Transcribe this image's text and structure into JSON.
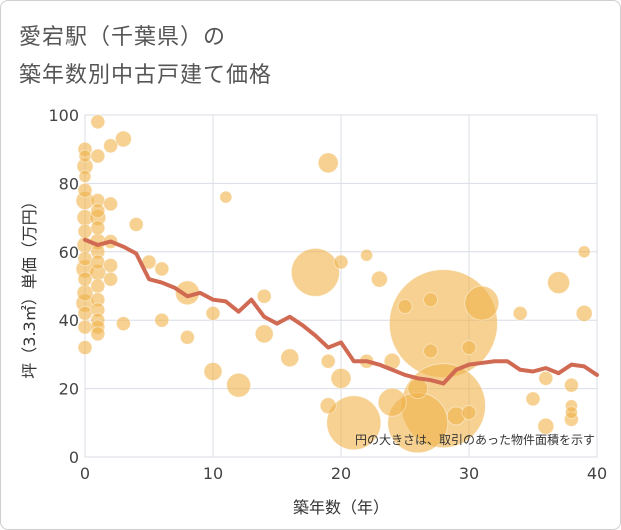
{
  "title_line1": "愛宕駅（千葉県）の",
  "title_line2": "築年数別中古戸建て価格",
  "chart_data": {
    "type": "scatter",
    "title": "愛宕駅（千葉県）の築年数別中古戸建て価格",
    "xlabel": "築年数（年）",
    "ylabel": "坪（3.3㎡）単価（万円）",
    "xlim": [
      0,
      40
    ],
    "ylim": [
      0,
      100
    ],
    "xticks": [
      0,
      10,
      20,
      30,
      40
    ],
    "yticks": [
      0,
      20,
      40,
      60,
      80,
      100
    ],
    "grid": true,
    "note": "円の大きさは、取引のあった物件面積を示す",
    "colors": {
      "bubble": "#f0b24a",
      "line": "#d06a52",
      "grid": "#d9dde6"
    },
    "bubbles": [
      {
        "x": 0,
        "y": 90,
        "r": 7
      },
      {
        "x": 0,
        "y": 88,
        "r": 6
      },
      {
        "x": 0,
        "y": 85,
        "r": 8
      },
      {
        "x": 0,
        "y": 82,
        "r": 6
      },
      {
        "x": 0,
        "y": 78,
        "r": 7
      },
      {
        "x": 0,
        "y": 75,
        "r": 9
      },
      {
        "x": 0,
        "y": 70,
        "r": 8
      },
      {
        "x": 0,
        "y": 66,
        "r": 7
      },
      {
        "x": 0,
        "y": 62,
        "r": 8
      },
      {
        "x": 0,
        "y": 58,
        "r": 7
      },
      {
        "x": 0,
        "y": 55,
        "r": 9
      },
      {
        "x": 0,
        "y": 52,
        "r": 7
      },
      {
        "x": 0,
        "y": 48,
        "r": 8
      },
      {
        "x": 0,
        "y": 45,
        "r": 9
      },
      {
        "x": 0,
        "y": 42,
        "r": 7
      },
      {
        "x": 0,
        "y": 38,
        "r": 7
      },
      {
        "x": 0,
        "y": 32,
        "r": 7
      },
      {
        "x": 1,
        "y": 98,
        "r": 7
      },
      {
        "x": 1,
        "y": 88,
        "r": 7
      },
      {
        "x": 1,
        "y": 75,
        "r": 7
      },
      {
        "x": 1,
        "y": 72,
        "r": 7
      },
      {
        "x": 1,
        "y": 70,
        "r": 8
      },
      {
        "x": 1,
        "y": 67,
        "r": 7
      },
      {
        "x": 1,
        "y": 63,
        "r": 8
      },
      {
        "x": 1,
        "y": 60,
        "r": 7
      },
      {
        "x": 1,
        "y": 57,
        "r": 7
      },
      {
        "x": 1,
        "y": 54,
        "r": 8
      },
      {
        "x": 1,
        "y": 50,
        "r": 7
      },
      {
        "x": 1,
        "y": 46,
        "r": 7
      },
      {
        "x": 1,
        "y": 43,
        "r": 7
      },
      {
        "x": 1,
        "y": 40,
        "r": 7
      },
      {
        "x": 1,
        "y": 38,
        "r": 7
      },
      {
        "x": 1,
        "y": 36,
        "r": 7
      },
      {
        "x": 2,
        "y": 91,
        "r": 7
      },
      {
        "x": 2,
        "y": 74,
        "r": 7
      },
      {
        "x": 2,
        "y": 63,
        "r": 7
      },
      {
        "x": 2,
        "y": 56,
        "r": 7
      },
      {
        "x": 2,
        "y": 52,
        "r": 7
      },
      {
        "x": 3,
        "y": 93,
        "r": 8
      },
      {
        "x": 3,
        "y": 39,
        "r": 7
      },
      {
        "x": 4,
        "y": 68,
        "r": 7
      },
      {
        "x": 5,
        "y": 57,
        "r": 7
      },
      {
        "x": 6,
        "y": 55,
        "r": 7
      },
      {
        "x": 6,
        "y": 40,
        "r": 7
      },
      {
        "x": 8,
        "y": 48,
        "r": 12
      },
      {
        "x": 8,
        "y": 35,
        "r": 7
      },
      {
        "x": 10,
        "y": 42,
        "r": 7
      },
      {
        "x": 10,
        "y": 25,
        "r": 9
      },
      {
        "x": 11,
        "y": 76,
        "r": 6
      },
      {
        "x": 12,
        "y": 21,
        "r": 12
      },
      {
        "x": 14,
        "y": 47,
        "r": 7
      },
      {
        "x": 14,
        "y": 36,
        "r": 9
      },
      {
        "x": 16,
        "y": 29,
        "r": 9
      },
      {
        "x": 18,
        "y": 54,
        "r": 24
      },
      {
        "x": 19,
        "y": 86,
        "r": 10
      },
      {
        "x": 19,
        "y": 28,
        "r": 7
      },
      {
        "x": 19,
        "y": 15,
        "r": 8
      },
      {
        "x": 20,
        "y": 57,
        "r": 7
      },
      {
        "x": 20,
        "y": 23,
        "r": 10
      },
      {
        "x": 21,
        "y": 10,
        "r": 27
      },
      {
        "x": 22,
        "y": 59,
        "r": 6
      },
      {
        "x": 22,
        "y": 28,
        "r": 7
      },
      {
        "x": 23,
        "y": 52,
        "r": 8
      },
      {
        "x": 24,
        "y": 28,
        "r": 8
      },
      {
        "x": 24,
        "y": 16,
        "r": 14
      },
      {
        "x": 25,
        "y": 44,
        "r": 7
      },
      {
        "x": 26,
        "y": 20,
        "r": 10
      },
      {
        "x": 26,
        "y": 10,
        "r": 30
      },
      {
        "x": 27,
        "y": 46,
        "r": 7
      },
      {
        "x": 27,
        "y": 31,
        "r": 7
      },
      {
        "x": 28,
        "y": 39,
        "r": 54
      },
      {
        "x": 28,
        "y": 15,
        "r": 42
      },
      {
        "x": 29,
        "y": 12,
        "r": 9
      },
      {
        "x": 30,
        "y": 32,
        "r": 7
      },
      {
        "x": 30,
        "y": 13,
        "r": 7
      },
      {
        "x": 31,
        "y": 45,
        "r": 17
      },
      {
        "x": 34,
        "y": 42,
        "r": 7
      },
      {
        "x": 35,
        "y": 17,
        "r": 7
      },
      {
        "x": 36,
        "y": 23,
        "r": 7
      },
      {
        "x": 36,
        "y": 9,
        "r": 8
      },
      {
        "x": 37,
        "y": 51,
        "r": 11
      },
      {
        "x": 38,
        "y": 21,
        "r": 7
      },
      {
        "x": 38,
        "y": 15,
        "r": 6
      },
      {
        "x": 38,
        "y": 13,
        "r": 6
      },
      {
        "x": 38,
        "y": 11,
        "r": 7
      },
      {
        "x": 39,
        "y": 60,
        "r": 6
      },
      {
        "x": 39,
        "y": 42,
        "r": 8
      }
    ],
    "trend": {
      "x": [
        0,
        1,
        2,
        3,
        4,
        5,
        6,
        7,
        8,
        9,
        10,
        11,
        12,
        13,
        14,
        15,
        16,
        17,
        18,
        19,
        20,
        21,
        22,
        23,
        24,
        25,
        26,
        27,
        28,
        29,
        30,
        31,
        32,
        33,
        34,
        35,
        36,
        37,
        38,
        39,
        40
      ],
      "y": [
        63.5,
        62,
        63,
        61.5,
        59.5,
        52,
        51,
        49.5,
        47,
        48,
        46,
        45.5,
        42.5,
        46,
        41,
        39,
        41,
        38.5,
        35.5,
        32,
        33.5,
        28,
        28,
        27,
        25.5,
        24,
        23,
        22.5,
        21.5,
        25.5,
        27,
        27.5,
        28,
        28,
        25.5,
        25,
        26,
        24.5,
        27,
        26.5,
        24
      ]
    }
  }
}
